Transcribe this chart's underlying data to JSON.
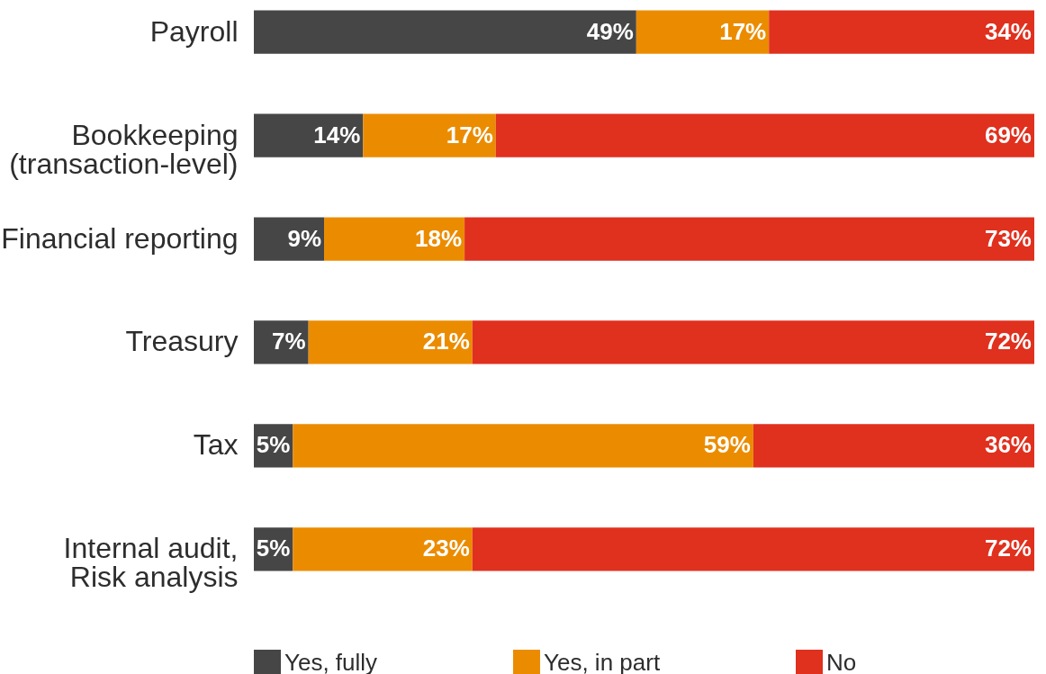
{
  "chart_data": {
    "type": "bar",
    "orientation": "horizontal",
    "stacked": true,
    "legend": "bottom",
    "tick_labels": "y",
    "categories": [
      "Payroll",
      "Bookkeeping\n(transaction-level)",
      "Financial reporting",
      "Treasury",
      "Tax",
      "Internal audit,\nRisk analysis"
    ],
    "series": [
      {
        "name": "Yes, fully",
        "color": "#464646",
        "values": [
          49,
          14,
          9,
          7,
          5,
          5
        ],
        "value_labels": [
          "49%",
          "14%",
          "9%",
          "7%",
          "5%",
          "5%"
        ]
      },
      {
        "name": "Yes, in part",
        "color": "#eb8c00",
        "values": [
          17,
          17,
          18,
          21,
          59,
          23
        ],
        "value_labels": [
          "17%",
          "17%",
          "18%",
          "21%",
          "59%",
          "23%"
        ]
      },
      {
        "name": "No",
        "color": "#e0301e",
        "values": [
          34,
          69,
          73,
          72,
          36,
          72
        ],
        "value_labels": [
          "34%",
          "69%",
          "73%",
          "72%",
          "36%",
          "72%"
        ]
      }
    ]
  }
}
